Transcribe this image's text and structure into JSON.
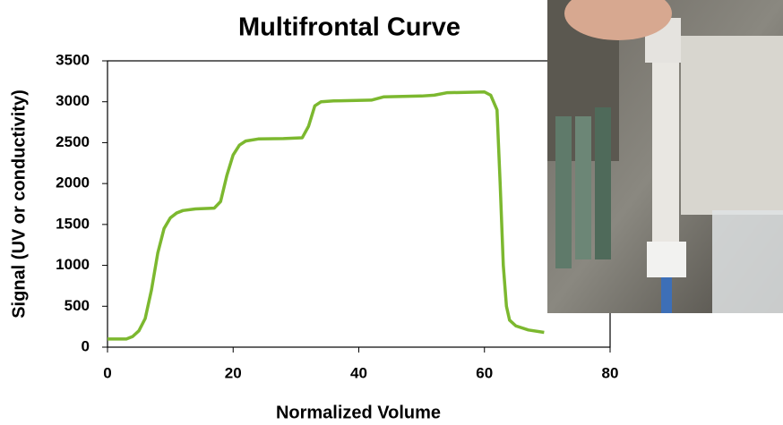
{
  "chart_data": {
    "type": "line",
    "title": "Multifrontal Curve",
    "x_label": "Normalized Volume",
    "y_label": "Signal (UV or conductivity)",
    "x": [
      0,
      3,
      4,
      5,
      6,
      7,
      8,
      9,
      10,
      11,
      12,
      14,
      17,
      18,
      19,
      20,
      21,
      22,
      24,
      28,
      31,
      32,
      33,
      34,
      36,
      42,
      44,
      50,
      52,
      54,
      60,
      61,
      62,
      62.5,
      63,
      63.5,
      64,
      65,
      67,
      69.5
    ],
    "values": [
      100,
      100,
      130,
      200,
      350,
      700,
      1150,
      1450,
      1580,
      1640,
      1670,
      1690,
      1700,
      1780,
      2100,
      2350,
      2470,
      2520,
      2545,
      2550,
      2560,
      2700,
      2950,
      3000,
      3010,
      3020,
      3060,
      3070,
      3080,
      3110,
      3120,
      3080,
      2900,
      2000,
      1000,
      500,
      330,
      260,
      210,
      180
    ],
    "color": "#7cb82f",
    "xlim": [
      0,
      80
    ],
    "xticks": [
      0,
      20,
      40,
      60,
      80
    ],
    "ylim": [
      0,
      3500
    ],
    "yticks": [
      0,
      500,
      1000,
      1500,
      2000,
      2500,
      3000,
      3500
    ],
    "grid": false
  }
}
